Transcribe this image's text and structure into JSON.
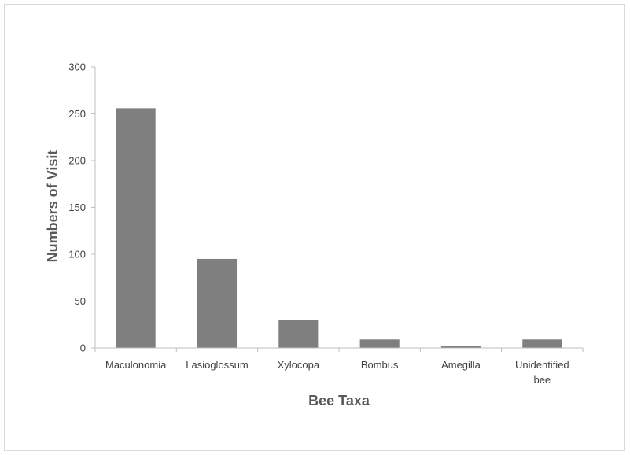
{
  "chart_data": {
    "type": "bar",
    "categories": [
      "Maculonomia",
      "Lasioglossum",
      "Xylocopa",
      "Bombus",
      "Amegilla",
      "Unidentified bee"
    ],
    "category_lines": [
      [
        "Maculonomia"
      ],
      [
        "Lasioglossum"
      ],
      [
        "Xylocopa"
      ],
      [
        "Bombus"
      ],
      [
        "Amegilla"
      ],
      [
        "Unidentified",
        "bee"
      ]
    ],
    "values": [
      256,
      95,
      30,
      9,
      2,
      9
    ],
    "xlabel": "Bee Taxa",
    "ylabel": "Numbers of Visit",
    "ylim": [
      0,
      300
    ],
    "yticks": [
      0,
      50,
      100,
      150,
      200,
      250,
      300
    ],
    "grid": false,
    "legend": "none",
    "bar_color": "#7f7f7f",
    "axis_color": "#bfbfbf"
  }
}
